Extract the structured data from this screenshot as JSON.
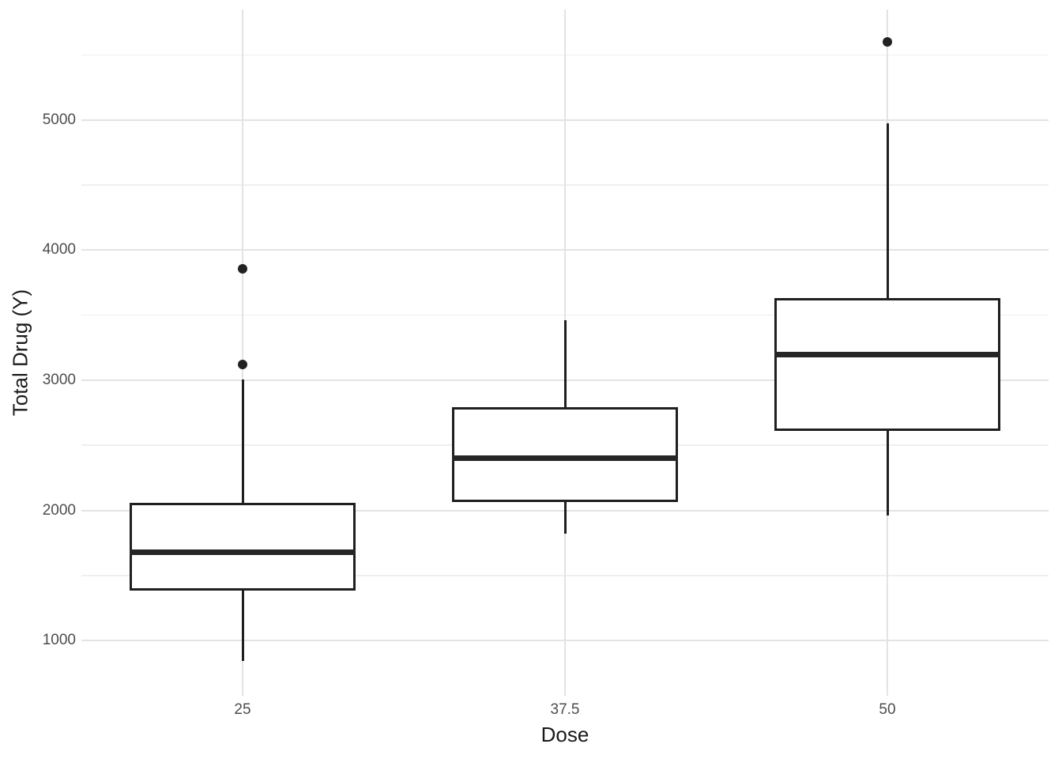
{
  "chart_data": {
    "type": "boxplot",
    "title": "",
    "xlabel": "Dose",
    "ylabel": "Total Drug (Y)",
    "categories": [
      "25",
      "37.5",
      "50"
    ],
    "ylim": [
      575,
      5850
    ],
    "yticks": [
      1000,
      2000,
      3000,
      4000,
      5000
    ],
    "yticks_minor": [
      1500,
      2500,
      3500,
      4500,
      5500
    ],
    "grid": "horizontal major+minor; vertical major at each category; no axis lines or tick marks (minimal theme)",
    "legend": "none",
    "boxes": [
      {
        "category": "25",
        "lower_whisker": 845,
        "q1": 1395,
        "median": 1680,
        "q3": 2050,
        "upper_whisker": 3005,
        "outliers": [
          3120,
          3855
        ]
      },
      {
        "category": "37.5",
        "lower_whisker": 1820,
        "q1": 2075,
        "median": 2400,
        "q3": 2785,
        "upper_whisker": 3460,
        "outliers": []
      },
      {
        "category": "50",
        "lower_whisker": 1960,
        "q1": 2620,
        "median": 3200,
        "q3": 3625,
        "upper_whisker": 4975,
        "outliers": [
          5600
        ]
      }
    ],
    "style": {
      "background_color": "#ffffff",
      "box_fill_color": "#ffffff",
      "box_border_color": "#1f1f1f",
      "median_color": "#262626",
      "outlier_color": "#222222",
      "gridline_major_color": "#e3e3e3",
      "gridline_minor_color": "#efefef",
      "tick_label_color": "#4d4d4d",
      "axis_title_color": "#1a1a1a"
    }
  }
}
